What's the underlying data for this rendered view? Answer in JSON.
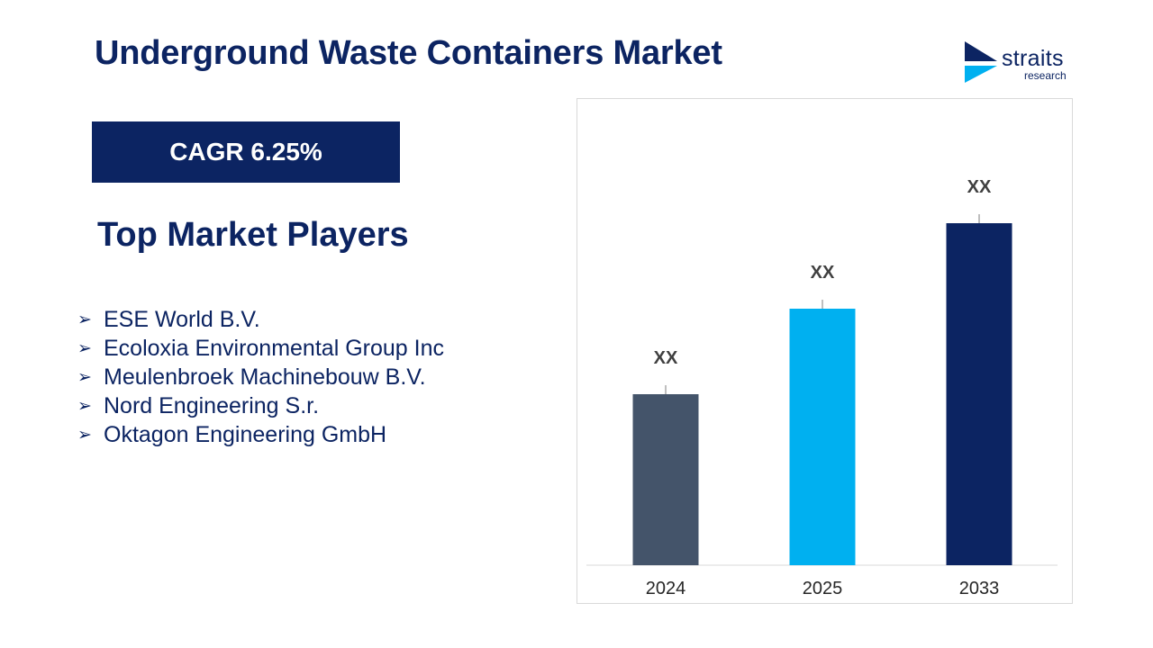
{
  "header": {
    "title": "Underground Waste Containers Market"
  },
  "logo": {
    "name": "straits",
    "sub": "research",
    "colors": {
      "navy": "#0c2462",
      "cyan": "#00b0f0"
    }
  },
  "cagr": {
    "label": "CAGR 6.25%"
  },
  "players": {
    "heading": "Top Market Players",
    "bullet_icon": "arrow-bullet-icon",
    "items": [
      "ESE World B.V.",
      "Ecoloxia Environmental Group Inc",
      "Meulenbroek Machinebouw B.V.",
      "Nord Engineering S.r.",
      "Oktagon Engineering GmbH"
    ]
  },
  "chart_data": {
    "type": "bar",
    "categories": [
      "2024",
      "2025",
      "2033"
    ],
    "values": [
      4,
      6,
      8
    ],
    "data_labels": [
      "XX",
      "XX",
      "XX"
    ],
    "colors": [
      "#44546a",
      "#00b0f0",
      "#0c2462"
    ],
    "title": "",
    "xlabel": "",
    "ylabel": "",
    "ylim": [
      0,
      8.8
    ],
    "grid": false,
    "legend": "none"
  }
}
